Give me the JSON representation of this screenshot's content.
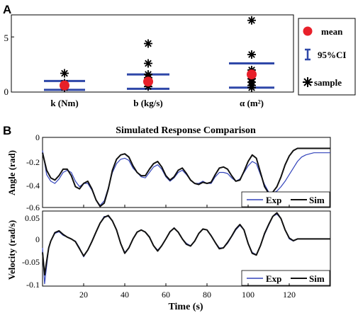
{
  "colors": {
    "exp": "#3344bb",
    "sim": "#111111",
    "ci": "#2e47a8",
    "mean": "#e8202a",
    "sample": "#000000"
  },
  "chart_data": [
    {
      "panel_label": "A",
      "type": "scatter",
      "categories": [
        "k (Nm)",
        "b (kg/s)",
        "α (m²)"
      ],
      "ylim": [
        0,
        7
      ],
      "yticks": [
        "0",
        "5"
      ],
      "legend": {
        "placement": "right",
        "entries": [
          "mean",
          "95%CI",
          "sample"
        ]
      },
      "mean": [
        0.6,
        0.95,
        1.6
      ],
      "ci": [
        [
          0.2,
          1.0
        ],
        [
          0.3,
          1.6
        ],
        [
          0.4,
          2.6
        ]
      ],
      "samples": [
        [
          0.4,
          0.6,
          0.8,
          1.7
        ],
        [
          0.5,
          0.8,
          1.0,
          1.3,
          1.6,
          2.6,
          4.4
        ],
        [
          0.4,
          0.6,
          0.9,
          1.2,
          1.5,
          1.8,
          2.0,
          3.4,
          6.5
        ]
      ]
    },
    {
      "panel_label": "B",
      "type": "line",
      "title": "Simulated Response Comparison",
      "xlabel": "Time (s)",
      "xlim": [
        0,
        140
      ],
      "xticks": [
        "20",
        "40",
        "60",
        "80",
        "100",
        "120"
      ],
      "subplots": [
        {
          "ylabel": "Angle (rad)",
          "ylim": [
            -0.62,
            0.02
          ],
          "yticks": [
            "0",
            "-0.2",
            "-0.4",
            "-0.6"
          ],
          "legend": [
            "Exp",
            "Sim"
          ],
          "series": [
            {
              "name": "Exp",
              "x": [
                0,
                2,
                4,
                6,
                8,
                10,
                12,
                14,
                16,
                18,
                20,
                22,
                24,
                26,
                28,
                30,
                32,
                34,
                36,
                38,
                40,
                42,
                44,
                46,
                48,
                50,
                52,
                54,
                56,
                58,
                60,
                62,
                64,
                66,
                68,
                70,
                72,
                74,
                76,
                78,
                80,
                82,
                84,
                86,
                88,
                90,
                92,
                94,
                96,
                98,
                100,
                102,
                104,
                106,
                108,
                110,
                112,
                114,
                116,
                118,
                120,
                122,
                124,
                126,
                128,
                130,
                132,
                134,
                136,
                138,
                140
              ],
              "y": [
                -0.1,
                -0.32,
                -0.38,
                -0.4,
                -0.36,
                -0.3,
                -0.28,
                -0.3,
                -0.38,
                -0.43,
                -0.4,
                -0.4,
                -0.46,
                -0.55,
                -0.6,
                -0.56,
                -0.44,
                -0.3,
                -0.22,
                -0.18,
                -0.17,
                -0.19,
                -0.26,
                -0.3,
                -0.34,
                -0.35,
                -0.3,
                -0.25,
                -0.23,
                -0.27,
                -0.34,
                -0.38,
                -0.35,
                -0.3,
                -0.28,
                -0.32,
                -0.37,
                -0.4,
                -0.4,
                -0.38,
                -0.4,
                -0.4,
                -0.34,
                -0.3,
                -0.3,
                -0.31,
                -0.35,
                -0.38,
                -0.36,
                -0.3,
                -0.24,
                -0.2,
                -0.22,
                -0.32,
                -0.41,
                -0.48,
                -0.49,
                -0.47,
                -0.43,
                -0.38,
                -0.32,
                -0.26,
                -0.2,
                -0.16,
                -0.14,
                -0.13,
                -0.12,
                -0.12,
                -0.12,
                -0.12,
                -0.12
              ]
            },
            {
              "name": "Sim",
              "x": [
                0,
                2,
                4,
                6,
                8,
                10,
                12,
                14,
                16,
                18,
                20,
                22,
                24,
                26,
                28,
                30,
                32,
                34,
                36,
                38,
                40,
                42,
                44,
                46,
                48,
                50,
                52,
                54,
                56,
                58,
                60,
                62,
                64,
                66,
                68,
                70,
                72,
                74,
                76,
                78,
                80,
                82,
                84,
                86,
                88,
                90,
                92,
                94,
                96,
                98,
                100,
                102,
                104,
                106,
                108,
                110,
                112,
                114,
                116,
                118,
                120,
                122,
                124,
                126,
                128,
                130,
                132,
                134,
                136,
                138,
                140
              ],
              "y": [
                -0.12,
                -0.28,
                -0.35,
                -0.37,
                -0.33,
                -0.27,
                -0.27,
                -0.33,
                -0.43,
                -0.45,
                -0.4,
                -0.38,
                -0.45,
                -0.55,
                -0.61,
                -0.58,
                -0.45,
                -0.28,
                -0.18,
                -0.14,
                -0.13,
                -0.16,
                -0.24,
                -0.3,
                -0.33,
                -0.33,
                -0.27,
                -0.22,
                -0.2,
                -0.25,
                -0.33,
                -0.37,
                -0.34,
                -0.28,
                -0.26,
                -0.31,
                -0.37,
                -0.4,
                -0.41,
                -0.39,
                -0.4,
                -0.39,
                -0.32,
                -0.26,
                -0.25,
                -0.27,
                -0.33,
                -0.38,
                -0.37,
                -0.29,
                -0.2,
                -0.14,
                -0.17,
                -0.3,
                -0.43,
                -0.49,
                -0.48,
                -0.43,
                -0.34,
                -0.23,
                -0.15,
                -0.1,
                -0.08,
                -0.08,
                -0.08,
                -0.08,
                -0.08,
                -0.08,
                -0.08,
                -0.08,
                -0.08
              ]
            }
          ]
        },
        {
          "ylabel": "Velocity (rad/s)",
          "ylim": [
            -0.105,
            0.062
          ],
          "yticks": [
            "0.05",
            "0",
            "-0.05",
            "-0.1"
          ],
          "legend": [
            "Exp",
            "Sim"
          ],
          "series": [
            {
              "name": "Exp",
              "x": [
                0,
                1,
                2,
                3,
                4,
                6,
                8,
                10,
                12,
                14,
                16,
                18,
                20,
                22,
                24,
                26,
                28,
                30,
                32,
                34,
                36,
                38,
                40,
                42,
                44,
                46,
                48,
                50,
                52,
                54,
                56,
                58,
                60,
                62,
                64,
                66,
                68,
                70,
                72,
                74,
                76,
                78,
                80,
                82,
                84,
                86,
                88,
                90,
                92,
                94,
                96,
                98,
                100,
                102,
                104,
                106,
                108,
                110,
                112,
                114,
                116,
                118,
                120,
                122,
                124,
                126,
                128,
                130,
                132,
                134,
                136,
                138,
                140
              ],
              "y": [
                -0.02,
                -0.1,
                -0.06,
                -0.02,
                -0.005,
                0.012,
                0.016,
                0.008,
                0.004,
                0.0,
                -0.005,
                -0.02,
                -0.04,
                -0.025,
                -0.005,
                0.015,
                0.035,
                0.05,
                0.05,
                0.04,
                0.02,
                -0.01,
                -0.03,
                -0.02,
                0.0,
                0.015,
                0.02,
                0.015,
                0.005,
                -0.015,
                -0.025,
                -0.015,
                0.0,
                0.015,
                0.025,
                0.015,
                0.0,
                -0.01,
                -0.015,
                -0.005,
                0.012,
                0.022,
                0.02,
                0.008,
                -0.008,
                -0.02,
                -0.02,
                -0.01,
                0.005,
                0.02,
                0.03,
                0.02,
                -0.01,
                -0.03,
                -0.035,
                -0.015,
                0.01,
                0.03,
                0.05,
                0.055,
                0.045,
                0.02,
                0.0,
                -0.005,
                0.0,
                0.0,
                0.0,
                0.0,
                0.0,
                0.0,
                0.0,
                0.0,
                0.0
              ]
            },
            {
              "name": "Sim",
              "x": [
                0,
                1,
                2,
                3,
                4,
                6,
                8,
                10,
                12,
                14,
                16,
                18,
                20,
                22,
                24,
                26,
                28,
                30,
                32,
                34,
                36,
                38,
                40,
                42,
                44,
                46,
                48,
                50,
                52,
                54,
                56,
                58,
                60,
                62,
                64,
                66,
                68,
                70,
                72,
                74,
                76,
                78,
                80,
                82,
                84,
                86,
                88,
                90,
                92,
                94,
                96,
                98,
                100,
                102,
                104,
                106,
                108,
                110,
                112,
                114,
                116,
                118,
                120,
                122,
                124,
                126,
                128,
                130,
                132,
                134,
                136,
                138,
                140
              ],
              "y": [
                -0.03,
                -0.08,
                -0.05,
                -0.02,
                -0.005,
                0.014,
                0.018,
                0.01,
                0.004,
                0.0,
                -0.006,
                -0.022,
                -0.038,
                -0.025,
                -0.006,
                0.015,
                0.035,
                0.048,
                0.052,
                0.04,
                0.02,
                -0.01,
                -0.032,
                -0.02,
                0.0,
                0.015,
                0.02,
                0.015,
                0.004,
                -0.015,
                -0.027,
                -0.015,
                0.0,
                0.016,
                0.024,
                0.015,
                0.0,
                -0.012,
                -0.016,
                -0.005,
                0.012,
                0.022,
                0.02,
                0.007,
                -0.008,
                -0.022,
                -0.02,
                -0.008,
                0.006,
                0.022,
                0.032,
                0.02,
                -0.01,
                -0.032,
                -0.036,
                -0.015,
                0.012,
                0.032,
                0.05,
                0.058,
                0.045,
                0.02,
                0.002,
                -0.004,
                0.0,
                0.0,
                0.0,
                0.0,
                0.0,
                0.0,
                0.0,
                0.0,
                0.0
              ]
            }
          ]
        }
      ]
    }
  ]
}
